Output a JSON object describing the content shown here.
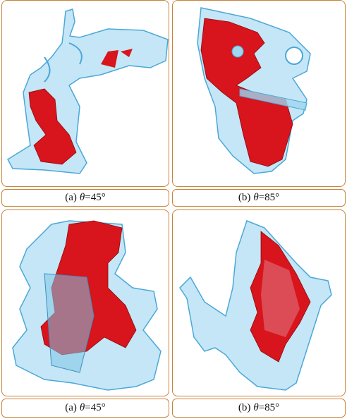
{
  "panels": [
    {
      "caption": {
        "label": "(a)",
        "symbol": "θ",
        "value": "=45°"
      }
    },
    {
      "caption": {
        "label": "(b)",
        "symbol": "θ",
        "value": "=85°"
      }
    },
    {
      "caption": {
        "label": "(a)",
        "symbol": "θ",
        "value": "=45°"
      }
    },
    {
      "caption": {
        "label": "(b)",
        "symbol": "θ",
        "value": "=85°"
      }
    }
  ]
}
